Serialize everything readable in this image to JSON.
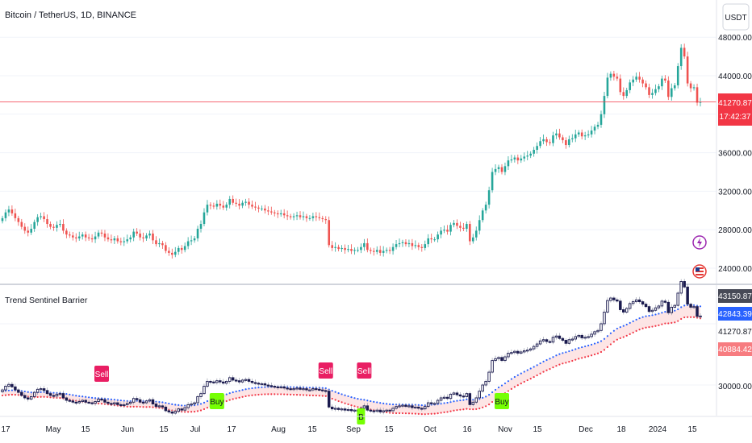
{
  "header": {
    "title": "Bitcoin / TetherUS, 1D, BINANCE",
    "currency_button": "USDT"
  },
  "colors": {
    "up": "#26a69a",
    "down": "#ef5350",
    "last_price_bg": "#f23645",
    "upper_band": "#2962ff",
    "lower_band": "#f23645",
    "band_fill": "#fde0e0",
    "signal_sell": "#e91e63",
    "signal_buy": "#76ff03",
    "indicator_candle": "#1a1a4e",
    "upper_label_bg": "#2962ff",
    "lower_label_bg": "#f77c80",
    "candle_label_bg": "#474a57"
  },
  "main_pane": {
    "y_ticks": [
      "48000.00",
      "44000.00",
      "36000.00",
      "32000.00",
      "28000.00",
      "24000.00"
    ],
    "last_price": "41270.87",
    "countdown": "17:42:37",
    "icons": [
      "lightning-icon",
      "us-flag-icon"
    ]
  },
  "indicator_pane": {
    "title": "Trend Sentinel Barrier",
    "y_ticks": [
      "30000.00"
    ],
    "labels": {
      "candle": "43150.87",
      "upper": "42843.39",
      "price": "41270.87",
      "lower": "40884.42"
    },
    "signals": [
      {
        "type": "sell",
        "text": "Sell",
        "bar": 31
      },
      {
        "type": "buy",
        "text": "Buy",
        "bar": 67
      },
      {
        "type": "sell",
        "text": "Sell",
        "bar": 101
      },
      {
        "type": "sell",
        "text": "Sell",
        "bar": 113
      },
      {
        "type": "buy",
        "text": "B",
        "bar": 112
      },
      {
        "type": "buy",
        "text": "Buy",
        "bar": 156
      }
    ]
  },
  "x_axis": {
    "labels": [
      "17",
      "May",
      "15",
      "Jun",
      "15",
      "Jul",
      "17",
      "Aug",
      "15",
      "Sep",
      "15",
      "Oct",
      "16",
      "Nov",
      "15",
      "Dec",
      "18",
      "2024",
      "15"
    ]
  },
  "chart_data": {
    "type": "candlestick",
    "title": "Bitcoin / TetherUS, 1D, BINANCE",
    "series_note": "daily closes sampled per bar, approximate",
    "ylim": [
      22500,
      48500
    ],
    "closes": [
      29200,
      29800,
      30100,
      29700,
      29200,
      28800,
      28300,
      27900,
      27700,
      28100,
      28800,
      29300,
      29400,
      29100,
      28600,
      28300,
      28200,
      28500,
      28600,
      27900,
      27500,
      27400,
      27200,
      27100,
      27300,
      27500,
      27200,
      27100,
      27000,
      27300,
      27700,
      27600,
      27200,
      27000,
      26900,
      27100,
      26800,
      26700,
      26800,
      27000,
      27200,
      27800,
      27600,
      27200,
      27100,
      27400,
      27600,
      26900,
      26500,
      26600,
      26400,
      25800,
      25600,
      25400,
      25700,
      26100,
      25900,
      26300,
      26800,
      26900,
      27100,
      28100,
      28600,
      29800,
      30600,
      30500,
      30400,
      30700,
      30500,
      30300,
      30600,
      31200,
      30800,
      30700,
      30500,
      30800,
      30900,
      30600,
      30400,
      30300,
      30200,
      30200,
      30000,
      29900,
      29800,
      29700,
      29600,
      29700,
      29500,
      29400,
      29300,
      29400,
      29500,
      29300,
      29400,
      29200,
      29200,
      29400,
      29300,
      29200,
      29100,
      29000,
      26400,
      26100,
      26200,
      26000,
      26100,
      25900,
      26000,
      25800,
      25900,
      25900,
      26200,
      26600,
      25900,
      25800,
      25700,
      25900,
      25600,
      25800,
      25900,
      25800,
      26200,
      26500,
      26600,
      26700,
      26500,
      26600,
      26300,
      26400,
      26200,
      26100,
      26500,
      27100,
      27000,
      27000,
      27500,
      27900,
      28000,
      27800,
      28500,
      28700,
      28400,
      28200,
      28100,
      28600,
      26800,
      27200,
      27900,
      29000,
      30000,
      30600,
      32100,
      34000,
      34300,
      34500,
      34000,
      34600,
      35200,
      35300,
      35500,
      35200,
      35400,
      35600,
      35700,
      35900,
      36300,
      36700,
      37200,
      37400,
      37100,
      37000,
      37800,
      38000,
      37600,
      37300,
      36800,
      37400,
      37500,
      37900,
      38100,
      37700,
      37800,
      37900,
      38300,
      38700,
      38900,
      40000,
      41900,
      43800,
      44200,
      43900,
      43700,
      42300,
      41900,
      42500,
      43300,
      43600,
      43900,
      43600,
      43200,
      42800,
      42000,
      42200,
      42600,
      42900,
      43700,
      43500,
      41800,
      42700,
      43000,
      45000,
      46900,
      46000,
      43200,
      42700,
      42800,
      41200,
      41270
    ],
    "upper_band": {
      "start": 28400,
      "end": 42843,
      "note": "blue dotted band"
    },
    "lower_band": {
      "start": 27600,
      "end": 40884,
      "note": "red dotted band"
    },
    "last_values": {
      "candle": 43150.87,
      "upper": 42843.39,
      "price": 41270.87,
      "lower": 40884.42
    }
  }
}
